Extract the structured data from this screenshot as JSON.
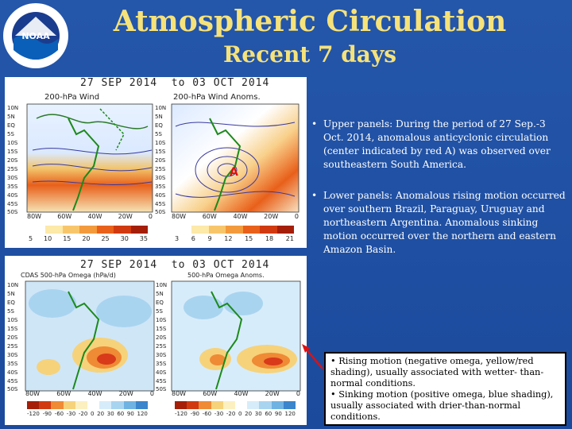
{
  "header": {
    "title": "Atmospheric Circulation",
    "subtitle": "Recent 7 days",
    "logo_text": "NOAA"
  },
  "figure_top": {
    "date_range": "27 SEP 2014  to 03 OCT 2014",
    "left_panel_title": "200-hPa Wind",
    "right_panel_title": "200-hPa Wind Anoms.",
    "left_colorbar": [
      "5",
      "10",
      "15",
      "20",
      "25",
      "30",
      "35"
    ],
    "right_colorbar": [
      "3",
      "6",
      "9",
      "12",
      "15",
      "18",
      "21"
    ],
    "lat_labels": [
      "10N",
      "5N",
      "EQ",
      "5S",
      "10S",
      "15S",
      "20S",
      "25S",
      "30S",
      "35S",
      "40S",
      "45S",
      "50S"
    ],
    "lon_labels": [
      "80W",
      "60W",
      "40W",
      "20W",
      "0"
    ],
    "anticyclone_label": "A"
  },
  "figure_bottom": {
    "date_range": "27 SEP 2014  to 03 OCT 2014",
    "left_panel_title": "CDAS 500-hPa Omega (hPa/d)",
    "right_panel_title": "500-hPa Omega Anoms.",
    "colorbar": [
      "-120",
      "-90",
      "-60",
      "-30",
      "-20",
      "0",
      "20",
      "30",
      "60",
      "90",
      "120"
    ],
    "lat_labels": [
      "10N",
      "5N",
      "EQ",
      "5S",
      "10S",
      "15S",
      "20S",
      "25S",
      "30S",
      "35S",
      "40S",
      "45S",
      "50S"
    ],
    "lon_labels": [
      "80W",
      "60W",
      "40W",
      "20W",
      "0"
    ]
  },
  "bullets": [
    "Upper panels: During the period of 27 Sep.-3 Oct. 2014, anomalous anticyclonic circulation (center indicated by red A) was observed over southeastern South America.",
    "Lower panels: Anomalous rising motion occurred over southern Brazil, Paraguay, Uruguay and northeastern Argentina. Anomalous sinking motion occurred over the northern and eastern Amazon Basin."
  ],
  "note": {
    "line1": "• Rising motion (negative omega, yellow/red shading), usually associated with wetter- than-normal conditions.",
    "line2": "• Sinking motion (positive omega, blue shading), usually associated with drier-than-normal conditions."
  },
  "colors": {
    "background": "#1f4fa0",
    "title": "#f6e27a",
    "anticyclone": "#e01010"
  }
}
